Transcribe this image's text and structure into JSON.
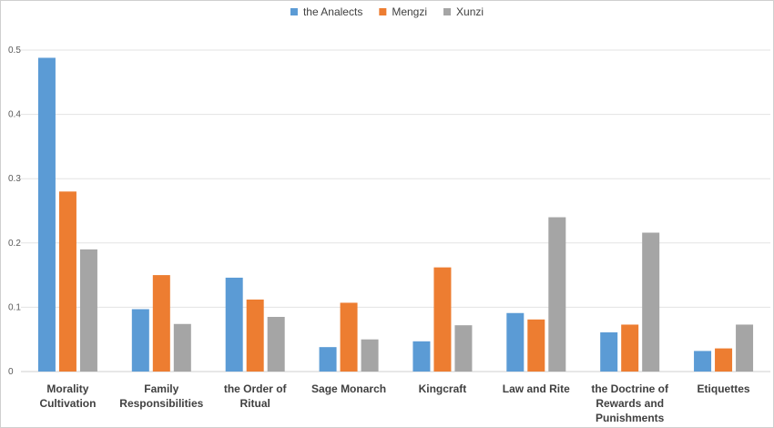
{
  "chart_data": {
    "type": "bar",
    "categories": [
      [
        "Morality",
        "Cultivation"
      ],
      [
        "Family",
        "Responsibilities"
      ],
      [
        "the Order of",
        "Ritual"
      ],
      [
        "Sage Monarch"
      ],
      [
        "Kingcraft"
      ],
      [
        "Law and Rite"
      ],
      [
        "the Doctrine of",
        "Rewards and",
        "Punishments"
      ],
      [
        "Etiquettes"
      ]
    ],
    "series": [
      {
        "name": "the Analects",
        "color": "#5B9BD5",
        "values": [
          0.488,
          0.097,
          0.146,
          0.038,
          0.047,
          0.091,
          0.061,
          0.032
        ]
      },
      {
        "name": "Mengzi",
        "color": "#ED7D31",
        "values": [
          0.28,
          0.15,
          0.112,
          0.107,
          0.162,
          0.081,
          0.073,
          0.036
        ]
      },
      {
        "name": "Xunzi",
        "color": "#A5A5A5",
        "values": [
          0.19,
          0.074,
          0.085,
          0.05,
          0.072,
          0.24,
          0.216,
          0.073
        ]
      }
    ],
    "y_ticks": [
      "0",
      "0.1",
      "0.2",
      "0.3",
      "0.4",
      "0.5"
    ],
    "ylim": [
      0,
      0.5
    ],
    "grid": true,
    "legend_position": "top-center",
    "title": "",
    "xlabel": "",
    "ylabel": ""
  }
}
